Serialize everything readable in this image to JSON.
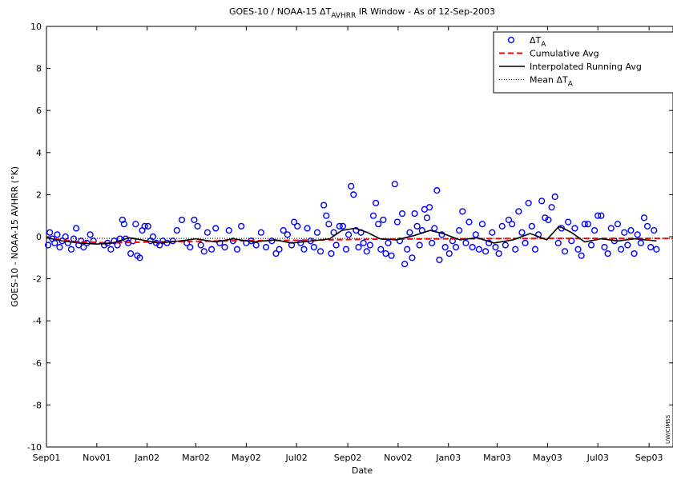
{
  "chart_data": {
    "type": "scatter",
    "title_main": "GOES-10 / NOAA-15 ΔT",
    "title_sub": "AVHRR",
    "title_rest": " IR Window  -   As of 12-Sep-2003",
    "xlabel": "Date",
    "ylabel": "GOES-10 - NOAA-15 AVHRR (°K)",
    "ylim": [
      -10,
      10
    ],
    "yticks": [
      -10,
      -8,
      -6,
      -4,
      -2,
      0,
      2,
      4,
      6,
      8,
      10
    ],
    "xlim": [
      "2001-09-01",
      "2003-09-30"
    ],
    "xticks": [
      {
        "label": "Sep01",
        "date": "2001-09-01"
      },
      {
        "label": "Nov01",
        "date": "2001-11-01"
      },
      {
        "label": "Jan02",
        "date": "2002-01-01"
      },
      {
        "label": "Mar02",
        "date": "2002-03-01"
      },
      {
        "label": "May02",
        "date": "2002-05-01"
      },
      {
        "label": "Jul02",
        "date": "2002-07-01"
      },
      {
        "label": "Sep02",
        "date": "2002-09-01"
      },
      {
        "label": "Nov02",
        "date": "2002-11-01"
      },
      {
        "label": "Jan03",
        "date": "2003-01-01"
      },
      {
        "label": "Mar03",
        "date": "2003-03-01"
      },
      {
        "label": "May03",
        "date": "2003-05-01"
      },
      {
        "label": "Jul03",
        "date": "2003-07-01"
      },
      {
        "label": "Sep03",
        "date": "2003-09-01"
      }
    ],
    "grid": false,
    "legend_position": "top-right",
    "legend": [
      {
        "label_main": "ΔT",
        "label_sub": "A",
        "style": "circle",
        "color": "#0000ff"
      },
      {
        "label_main": "Cumulative Avg",
        "label_sub": "",
        "style": "dashed",
        "color": "#ff0000"
      },
      {
        "label_main": "Interpolated Running Avg",
        "label_sub": "",
        "style": "solid",
        "color": "#000000"
      },
      {
        "label_main": "Mean ΔT",
        "label_sub": "A",
        "style": "dotted",
        "color": "#000000"
      }
    ],
    "mean_delta_t": -0.08,
    "cumulative_avg": [
      [
        "2001-09-01",
        -0.05
      ],
      [
        "2001-10-01",
        -0.22
      ],
      [
        "2001-11-15",
        -0.3
      ],
      [
        "2002-01-01",
        -0.25
      ],
      [
        "2002-04-01",
        -0.2
      ],
      [
        "2002-07-01",
        -0.17
      ],
      [
        "2002-10-01",
        -0.12
      ],
      [
        "2003-01-01",
        -0.1
      ],
      [
        "2003-05-01",
        -0.08
      ],
      [
        "2003-09-30",
        -0.08
      ]
    ],
    "running_avg": [
      [
        "2001-09-01",
        -0.05
      ],
      [
        "2001-09-20",
        -0.2
      ],
      [
        "2001-10-10",
        -0.3
      ],
      [
        "2001-11-01",
        -0.35
      ],
      [
        "2001-11-20",
        -0.3
      ],
      [
        "2001-12-10",
        -0.05
      ],
      [
        "2001-12-25",
        -0.15
      ],
      [
        "2002-01-15",
        -0.3
      ],
      [
        "2002-02-10",
        -0.2
      ],
      [
        "2002-03-01",
        -0.1
      ],
      [
        "2002-03-25",
        -0.25
      ],
      [
        "2002-04-15",
        -0.1
      ],
      [
        "2002-05-10",
        -0.25
      ],
      [
        "2002-06-05",
        -0.15
      ],
      [
        "2002-06-25",
        -0.3
      ],
      [
        "2002-07-20",
        -0.2
      ],
      [
        "2002-08-10",
        -0.1
      ],
      [
        "2002-08-25",
        0.3
      ],
      [
        "2002-09-10",
        0.4
      ],
      [
        "2002-09-25",
        0.2
      ],
      [
        "2002-10-10",
        -0.1
      ],
      [
        "2002-10-30",
        -0.15
      ],
      [
        "2002-11-20",
        0.05
      ],
      [
        "2002-12-10",
        0.3
      ],
      [
        "2002-12-25",
        0.15
      ],
      [
        "2003-01-15",
        -0.15
      ],
      [
        "2003-02-05",
        -0.05
      ],
      [
        "2003-02-25",
        -0.3
      ],
      [
        "2003-03-20",
        -0.15
      ],
      [
        "2003-04-10",
        0.15
      ],
      [
        "2003-04-30",
        -0.15
      ],
      [
        "2003-05-15",
        0.5
      ],
      [
        "2003-05-30",
        0.2
      ],
      [
        "2003-06-15",
        -0.25
      ],
      [
        "2003-07-05",
        -0.1
      ],
      [
        "2003-07-25",
        -0.2
      ],
      [
        "2003-08-15",
        -0.1
      ],
      [
        "2003-09-10",
        -0.2
      ]
    ],
    "delta_t_points": [
      [
        "2001-09-03",
        -0.4
      ],
      [
        "2001-09-05",
        0.2
      ],
      [
        "2001-09-08",
        -0.1
      ],
      [
        "2001-09-11",
        -0.3
      ],
      [
        "2001-09-14",
        0.1
      ],
      [
        "2001-09-17",
        -0.5
      ],
      [
        "2001-09-20",
        -0.2
      ],
      [
        "2001-09-24",
        0.0
      ],
      [
        "2001-09-27",
        -0.3
      ],
      [
        "2001-10-01",
        -0.6
      ],
      [
        "2001-10-04",
        -0.1
      ],
      [
        "2001-10-07",
        0.4
      ],
      [
        "2001-10-10",
        -0.4
      ],
      [
        "2001-10-13",
        -0.2
      ],
      [
        "2001-10-16",
        -0.5
      ],
      [
        "2001-10-20",
        -0.3
      ],
      [
        "2001-10-24",
        0.1
      ],
      [
        "2001-10-28",
        -0.2
      ],
      [
        "2001-11-10",
        -0.4
      ],
      [
        "2001-11-14",
        -0.3
      ],
      [
        "2001-11-18",
        -0.6
      ],
      [
        "2001-11-22",
        -0.2
      ],
      [
        "2001-11-26",
        -0.4
      ],
      [
        "2001-11-29",
        -0.1
      ],
      [
        "2001-12-02",
        0.8
      ],
      [
        "2001-12-04",
        0.6
      ],
      [
        "2001-12-06",
        -0.1
      ],
      [
        "2001-12-09",
        -0.3
      ],
      [
        "2001-12-12",
        -0.8
      ],
      [
        "2001-12-15",
        -0.2
      ],
      [
        "2001-12-18",
        0.6
      ],
      [
        "2001-12-20",
        -0.9
      ],
      [
        "2001-12-23",
        -1.0
      ],
      [
        "2001-12-26",
        0.3
      ],
      [
        "2001-12-29",
        0.5
      ],
      [
        "2002-01-02",
        0.5
      ],
      [
        "2002-01-05",
        -0.2
      ],
      [
        "2002-01-08",
        0.0
      ],
      [
        "2002-01-12",
        -0.3
      ],
      [
        "2002-01-16",
        -0.4
      ],
      [
        "2002-01-20",
        -0.2
      ],
      [
        "2002-01-25",
        -0.3
      ],
      [
        "2002-02-01",
        -0.2
      ],
      [
        "2002-02-06",
        0.3
      ],
      [
        "2002-02-12",
        0.8
      ],
      [
        "2002-02-18",
        -0.3
      ],
      [
        "2002-02-22",
        -0.5
      ],
      [
        "2002-02-27",
        0.8
      ],
      [
        "2002-03-03",
        0.5
      ],
      [
        "2002-03-07",
        -0.4
      ],
      [
        "2002-03-11",
        -0.7
      ],
      [
        "2002-03-15",
        0.2
      ],
      [
        "2002-03-20",
        -0.6
      ],
      [
        "2002-03-25",
        0.4
      ],
      [
        "2002-03-30",
        -0.3
      ],
      [
        "2002-04-05",
        -0.5
      ],
      [
        "2002-04-10",
        0.3
      ],
      [
        "2002-04-15",
        -0.2
      ],
      [
        "2002-04-20",
        -0.6
      ],
      [
        "2002-04-25",
        0.5
      ],
      [
        "2002-05-01",
        -0.3
      ],
      [
        "2002-05-07",
        -0.2
      ],
      [
        "2002-05-13",
        -0.4
      ],
      [
        "2002-05-19",
        0.2
      ],
      [
        "2002-05-25",
        -0.5
      ],
      [
        "2002-06-01",
        -0.2
      ],
      [
        "2002-06-06",
        -0.8
      ],
      [
        "2002-06-10",
        -0.6
      ],
      [
        "2002-06-15",
        0.3
      ],
      [
        "2002-06-20",
        0.1
      ],
      [
        "2002-06-25",
        -0.4
      ],
      [
        "2002-06-28",
        0.7
      ],
      [
        "2002-07-02",
        0.5
      ],
      [
        "2002-07-06",
        -0.3
      ],
      [
        "2002-07-10",
        -0.6
      ],
      [
        "2002-07-14",
        0.4
      ],
      [
        "2002-07-18",
        -0.2
      ],
      [
        "2002-07-22",
        -0.5
      ],
      [
        "2002-07-26",
        0.2
      ],
      [
        "2002-07-30",
        -0.7
      ],
      [
        "2002-08-03",
        1.5
      ],
      [
        "2002-08-06",
        1.0
      ],
      [
        "2002-08-09",
        0.6
      ],
      [
        "2002-08-12",
        -0.8
      ],
      [
        "2002-08-15",
        0.2
      ],
      [
        "2002-08-18",
        -0.4
      ],
      [
        "2002-08-22",
        0.5
      ],
      [
        "2002-08-26",
        0.5
      ],
      [
        "2002-08-30",
        -0.6
      ],
      [
        "2002-09-02",
        0.1
      ],
      [
        "2002-09-05",
        2.4
      ],
      [
        "2002-09-08",
        2.0
      ],
      [
        "2002-09-11",
        0.3
      ],
      [
        "2002-09-14",
        -0.5
      ],
      [
        "2002-09-17",
        0.2
      ],
      [
        "2002-09-20",
        -0.3
      ],
      [
        "2002-09-24",
        -0.7
      ],
      [
        "2002-09-28",
        -0.4
      ],
      [
        "2002-10-02",
        1.0
      ],
      [
        "2002-10-05",
        1.6
      ],
      [
        "2002-10-08",
        0.6
      ],
      [
        "2002-10-11",
        -0.6
      ],
      [
        "2002-10-14",
        0.8
      ],
      [
        "2002-10-17",
        -0.8
      ],
      [
        "2002-10-20",
        -0.3
      ],
      [
        "2002-10-24",
        -0.9
      ],
      [
        "2002-10-28",
        2.5
      ],
      [
        "2002-10-31",
        0.7
      ],
      [
        "2002-11-03",
        -0.2
      ],
      [
        "2002-11-06",
        1.1
      ],
      [
        "2002-11-09",
        -1.3
      ],
      [
        "2002-11-12",
        -0.6
      ],
      [
        "2002-11-15",
        0.2
      ],
      [
        "2002-11-18",
        -1.0
      ],
      [
        "2002-11-21",
        1.1
      ],
      [
        "2002-11-24",
        0.5
      ],
      [
        "2002-11-27",
        -0.4
      ],
      [
        "2002-11-30",
        0.3
      ],
      [
        "2002-12-03",
        1.3
      ],
      [
        "2002-12-06",
        0.9
      ],
      [
        "2002-12-09",
        1.4
      ],
      [
        "2002-12-12",
        -0.3
      ],
      [
        "2002-12-15",
        0.4
      ],
      [
        "2002-12-18",
        2.2
      ],
      [
        "2002-12-21",
        -1.1
      ],
      [
        "2002-12-24",
        0.1
      ],
      [
        "2002-12-28",
        -0.5
      ],
      [
        "2003-01-02",
        -0.8
      ],
      [
        "2003-01-06",
        -0.2
      ],
      [
        "2003-01-10",
        -0.5
      ],
      [
        "2003-01-14",
        0.3
      ],
      [
        "2003-01-18",
        1.2
      ],
      [
        "2003-01-22",
        -0.3
      ],
      [
        "2003-01-26",
        0.7
      ],
      [
        "2003-01-30",
        -0.5
      ],
      [
        "2003-02-03",
        0.1
      ],
      [
        "2003-02-07",
        -0.6
      ],
      [
        "2003-02-11",
        0.6
      ],
      [
        "2003-02-15",
        -0.7
      ],
      [
        "2003-02-19",
        -0.3
      ],
      [
        "2003-02-23",
        0.2
      ],
      [
        "2003-02-27",
        -0.5
      ],
      [
        "2003-03-03",
        -0.8
      ],
      [
        "2003-03-07",
        0.5
      ],
      [
        "2003-03-11",
        -0.4
      ],
      [
        "2003-03-15",
        0.8
      ],
      [
        "2003-03-19",
        0.6
      ],
      [
        "2003-03-23",
        -0.6
      ],
      [
        "2003-03-27",
        1.2
      ],
      [
        "2003-03-31",
        0.2
      ],
      [
        "2003-04-04",
        -0.3
      ],
      [
        "2003-04-08",
        1.6
      ],
      [
        "2003-04-12",
        0.5
      ],
      [
        "2003-04-16",
        -0.6
      ],
      [
        "2003-04-20",
        0.1
      ],
      [
        "2003-04-24",
        1.7
      ],
      [
        "2003-04-28",
        0.9
      ],
      [
        "2003-05-02",
        0.8
      ],
      [
        "2003-05-06",
        1.4
      ],
      [
        "2003-05-10",
        1.9
      ],
      [
        "2003-05-14",
        -0.3
      ],
      [
        "2003-05-18",
        0.4
      ],
      [
        "2003-05-22",
        -0.7
      ],
      [
        "2003-05-26",
        0.7
      ],
      [
        "2003-05-30",
        -0.2
      ],
      [
        "2003-06-03",
        0.4
      ],
      [
        "2003-06-07",
        -0.6
      ],
      [
        "2003-06-11",
        -0.9
      ],
      [
        "2003-06-15",
        0.6
      ],
      [
        "2003-06-19",
        0.6
      ],
      [
        "2003-06-23",
        -0.4
      ],
      [
        "2003-06-27",
        0.3
      ],
      [
        "2003-07-01",
        1.0
      ],
      [
        "2003-07-05",
        1.0
      ],
      [
        "2003-07-09",
        -0.5
      ],
      [
        "2003-07-13",
        -0.8
      ],
      [
        "2003-07-17",
        0.4
      ],
      [
        "2003-07-21",
        -0.2
      ],
      [
        "2003-07-25",
        0.6
      ],
      [
        "2003-07-29",
        -0.6
      ],
      [
        "2003-08-02",
        0.2
      ],
      [
        "2003-08-06",
        -0.4
      ],
      [
        "2003-08-10",
        0.3
      ],
      [
        "2003-08-14",
        -0.8
      ],
      [
        "2003-08-18",
        0.1
      ],
      [
        "2003-08-22",
        -0.3
      ],
      [
        "2003-08-26",
        0.9
      ],
      [
        "2003-08-30",
        0.5
      ],
      [
        "2003-09-03",
        -0.5
      ],
      [
        "2003-09-07",
        0.3
      ],
      [
        "2003-09-10",
        -0.6
      ]
    ]
  },
  "credit": "UW/CIMSS"
}
